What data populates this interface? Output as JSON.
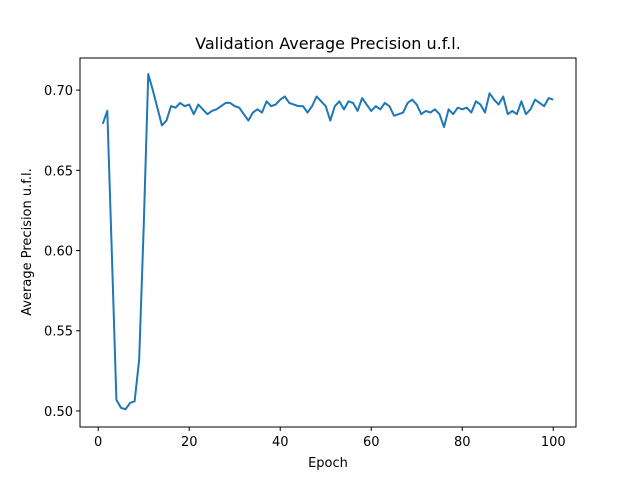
{
  "chart_data": {
    "type": "line",
    "title": "Validation Average Precision u.f.l.",
    "xlabel": "Epoch",
    "ylabel": "Average Precision u.f.l.",
    "xlim": [
      -4,
      105
    ],
    "ylim": [
      0.49,
      0.72
    ],
    "xticks": [
      0,
      20,
      40,
      60,
      80,
      100
    ],
    "yticks": [
      0.5,
      0.55,
      0.6,
      0.65,
      0.7
    ],
    "ytick_labels": [
      "0.50",
      "0.55",
      "0.60",
      "0.65",
      "0.70"
    ],
    "grid": false,
    "line_color": "#1f77b4",
    "series": [
      {
        "x": [
          1,
          2,
          3,
          4,
          5,
          6,
          7,
          8,
          9,
          10,
          11,
          12,
          13,
          14,
          15,
          16,
          17,
          18,
          19,
          20,
          21,
          22,
          23,
          24,
          25,
          26,
          27,
          28,
          29,
          30,
          31,
          32,
          33,
          34,
          35,
          36,
          37,
          38,
          39,
          40,
          41,
          42,
          43,
          44,
          45,
          46,
          47,
          48,
          49,
          50,
          51,
          52,
          53,
          54,
          55,
          56,
          57,
          58,
          59,
          60,
          61,
          62,
          63,
          64,
          65,
          66,
          67,
          68,
          69,
          70,
          71,
          72,
          73,
          74,
          75,
          76,
          77,
          78,
          79,
          80,
          81,
          82,
          83,
          84,
          85,
          86,
          87,
          88,
          89,
          90,
          91,
          92,
          93,
          94,
          95,
          96,
          97,
          98,
          99,
          100
        ],
        "values": [
          0.679,
          0.687,
          0.598,
          0.507,
          0.502,
          0.501,
          0.505,
          0.506,
          0.532,
          0.615,
          0.71,
          0.7,
          0.689,
          0.678,
          0.681,
          0.69,
          0.689,
          0.692,
          0.69,
          0.691,
          0.685,
          0.691,
          0.688,
          0.685,
          0.687,
          0.688,
          0.69,
          0.692,
          0.692,
          0.69,
          0.689,
          0.685,
          0.681,
          0.686,
          0.688,
          0.686,
          0.693,
          0.69,
          0.691,
          0.694,
          0.696,
          0.692,
          0.691,
          0.69,
          0.69,
          0.686,
          0.69,
          0.696,
          0.693,
          0.69,
          0.681,
          0.69,
          0.693,
          0.688,
          0.693,
          0.692,
          0.687,
          0.695,
          0.691,
          0.687,
          0.69,
          0.688,
          0.692,
          0.69,
          0.684,
          0.685,
          0.686,
          0.692,
          0.694,
          0.691,
          0.685,
          0.687,
          0.686,
          0.688,
          0.685,
          0.677,
          0.688,
          0.685,
          0.689,
          0.688,
          0.689,
          0.686,
          0.693,
          0.691,
          0.686,
          0.698,
          0.694,
          0.691,
          0.696,
          0.685,
          0.687,
          0.685,
          0.693,
          0.685,
          0.688,
          0.694,
          0.692,
          0.69,
          0.695,
          0.694
        ]
      }
    ]
  }
}
